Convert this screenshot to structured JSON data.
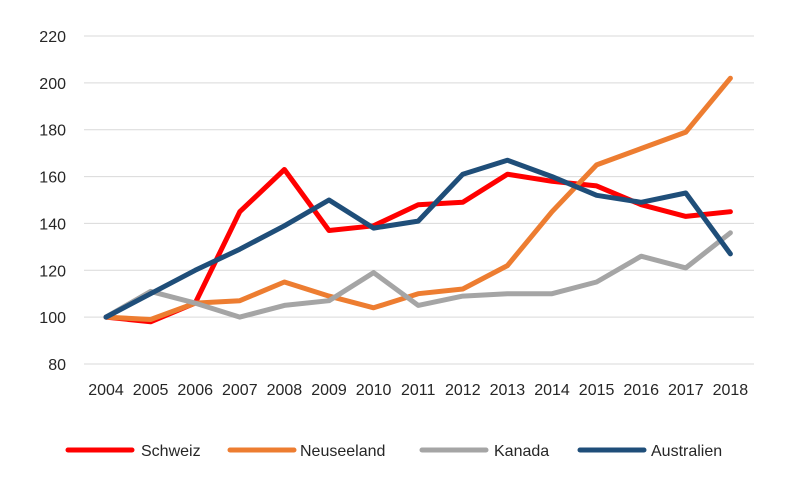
{
  "chart_data": {
    "type": "line",
    "x": [
      "2004",
      "2005",
      "2006",
      "2007",
      "2008",
      "2009",
      "2010",
      "2011",
      "2012",
      "2013",
      "2014",
      "2015",
      "2016",
      "2017",
      "2018"
    ],
    "ylim": [
      80,
      220
    ],
    "yticks": [
      80,
      100,
      120,
      140,
      160,
      180,
      200,
      220
    ],
    "grid": true,
    "legend_position": "bottom",
    "series": [
      {
        "name": "Schweiz",
        "color": "#ff0000",
        "values": [
          100,
          98,
          106,
          145,
          163,
          137,
          139,
          148,
          149,
          161,
          158,
          156,
          148,
          143,
          145
        ]
      },
      {
        "name": "Neuseeland",
        "color": "#ed7d31",
        "values": [
          100,
          99,
          106,
          107,
          115,
          109,
          104,
          110,
          112,
          122,
          145,
          165,
          172,
          179,
          202
        ]
      },
      {
        "name": "Kanada",
        "color": "#a5a5a5",
        "values": [
          100,
          111,
          106,
          100,
          105,
          107,
          119,
          105,
          109,
          110,
          110,
          115,
          126,
          121,
          136
        ]
      },
      {
        "name": "Australien",
        "color": "#1f4e79",
        "values": [
          100,
          110,
          120,
          129,
          139,
          150,
          138,
          141,
          161,
          167,
          160,
          152,
          149,
          153,
          127
        ]
      }
    ]
  }
}
